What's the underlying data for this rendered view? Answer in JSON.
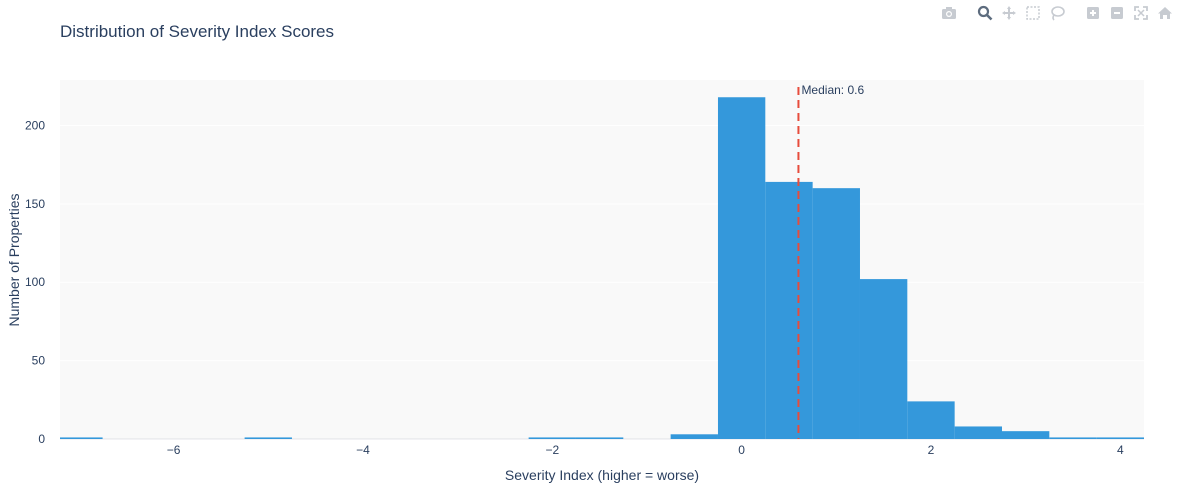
{
  "chart_data": {
    "type": "bar",
    "title": "Distribution of Severity Index Scores",
    "xlabel": "Severity Index (higher = worse)",
    "ylabel": "Number of Properties",
    "xlim": [
      -7.2,
      4.25
    ],
    "ylim": [
      0,
      229
    ],
    "xticks": [
      -6,
      -4,
      -2,
      0,
      2,
      4
    ],
    "xtick_labels": [
      "−6",
      "−4",
      "−2",
      "0",
      "2",
      "4"
    ],
    "yticks": [
      0,
      50,
      100,
      150,
      200
    ],
    "bin_width": 0.5,
    "bins": [
      {
        "x0": -7.25,
        "count": 1
      },
      {
        "x0": -5.25,
        "count": 1
      },
      {
        "x0": -2.25,
        "count": 1
      },
      {
        "x0": -1.75,
        "count": 1
      },
      {
        "x0": -0.75,
        "count": 3
      },
      {
        "x0": -0.25,
        "count": 218
      },
      {
        "x0": 0.25,
        "count": 164
      },
      {
        "x0": 0.75,
        "count": 160
      },
      {
        "x0": 1.25,
        "count": 102
      },
      {
        "x0": 1.75,
        "count": 24
      },
      {
        "x0": 2.25,
        "count": 8
      },
      {
        "x0": 2.75,
        "count": 5
      },
      {
        "x0": 3.25,
        "count": 1
      },
      {
        "x0": 3.75,
        "count": 1
      }
    ],
    "median": {
      "value": 0.6,
      "label": "Median: 0.6"
    },
    "bar_color": "#3498db",
    "median_color": "#e74c3c",
    "plot_bg": "#f9f9f9",
    "grid": true
  },
  "modebar": [
    "camera-icon",
    "zoom-icon",
    "pan-icon",
    "box-select-icon",
    "lasso-icon",
    "zoom-in-icon",
    "zoom-out-icon",
    "autoscale-icon",
    "home-icon"
  ]
}
